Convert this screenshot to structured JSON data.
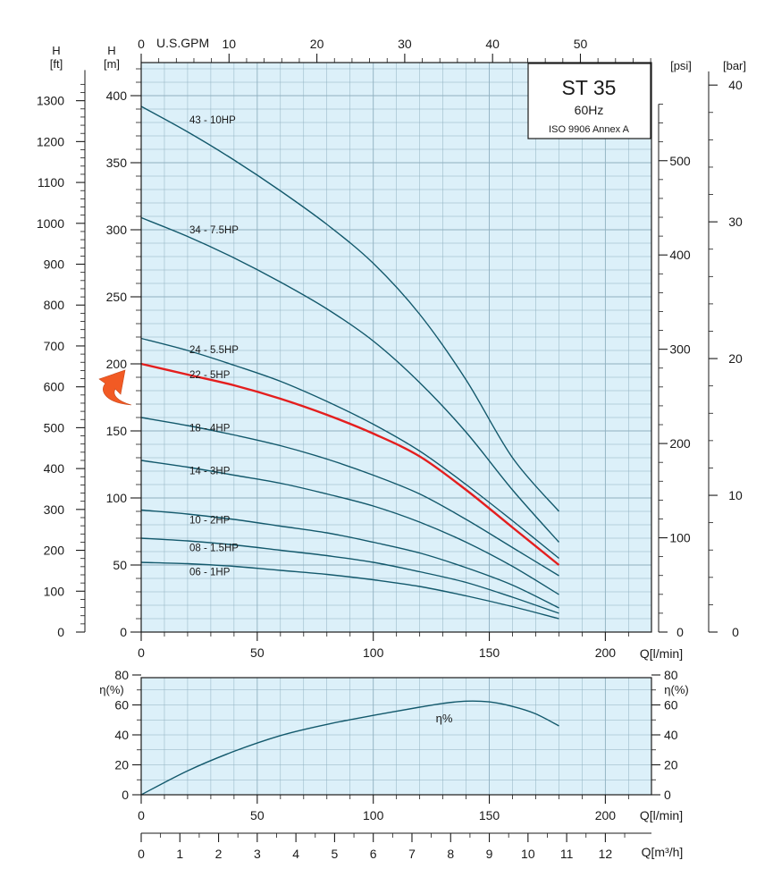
{
  "title_box": {
    "title": "ST 35",
    "frequency": "60Hz",
    "standard": "ISO 9906 Annex A"
  },
  "axes": {
    "q_lmin_label": "Q[l/min]",
    "q_m3h_label": "Q[m³/h]",
    "gpm_label": "U.S.GPM",
    "h_m_label": [
      "H",
      "[m]"
    ],
    "h_ft_label": [
      "H",
      "[ft]"
    ],
    "psi_label": "[psi]",
    "bar_label": "[bar]",
    "eff_label": "η(%)",
    "q_lmin_ticks": [
      "0",
      "50",
      "100",
      "150",
      "200"
    ],
    "q_m3h_ticks": [
      "0",
      "1",
      "2",
      "3",
      "4",
      "5",
      "6",
      "7",
      "8",
      "9",
      "10",
      "11",
      "12"
    ],
    "gpm_ticks": [
      "0",
      "10",
      "20",
      "30",
      "40",
      "50"
    ],
    "h_m_ticks": [
      "0",
      "50",
      "100",
      "150",
      "200",
      "250",
      "300",
      "350",
      "400"
    ],
    "h_ft_ticks": [
      "0",
      "100",
      "200",
      "300",
      "400",
      "500",
      "600",
      "700",
      "800",
      "900",
      "1000",
      "1100",
      "1200",
      "1300"
    ],
    "psi_ticks": [
      "0",
      "100",
      "200",
      "300",
      "400",
      "500"
    ],
    "bar_ticks": [
      "0",
      "10",
      "20",
      "30",
      "40"
    ],
    "eff_ticks": [
      "0",
      "20",
      "40",
      "60",
      "80"
    ]
  },
  "colors": {
    "curve": "#13596c",
    "highlight": "#e41e1e",
    "plot_background": "#dcf0f9",
    "grid": "#8fb0c0",
    "arrow": "#f25a24"
  },
  "chart_data": [
    {
      "type": "line",
      "name": "head-curves",
      "xlabel": "Q[l/min]",
      "ylabel": "H [m]",
      "xlim": [
        0,
        220
      ],
      "ylim": [
        0,
        420
      ],
      "x": [
        0,
        20,
        40,
        60,
        80,
        100,
        120,
        140,
        160,
        180
      ],
      "series": [
        {
          "name": "43 - 10HP",
          "values": [
            392,
            373,
            352,
            329,
            304,
            275,
            237,
            188,
            130,
            90
          ]
        },
        {
          "name": "34 - 7.5HP",
          "values": [
            309,
            295,
            279,
            261,
            241,
            217,
            186,
            149,
            106,
            67
          ]
        },
        {
          "name": "24 - 5.5HP",
          "values": [
            219,
            210,
            199,
            187,
            172,
            155,
            135,
            110,
            83,
            55
          ]
        },
        {
          "name": "22 - 5HP",
          "values": [
            200,
            192,
            184,
            174,
            162,
            148,
            131,
            106,
            78,
            50
          ],
          "highlight": true
        },
        {
          "name": "18 - 4HP",
          "values": [
            160,
            154,
            147,
            139,
            129,
            117,
            103,
            84,
            63,
            42
          ]
        },
        {
          "name": "14 - 3HP",
          "values": [
            128,
            123,
            117,
            111,
            103,
            94,
            82,
            67,
            49,
            28
          ]
        },
        {
          "name": "10 - 2HP",
          "values": [
            91,
            88,
            84,
            79,
            74,
            67,
            59,
            48,
            35,
            18
          ]
        },
        {
          "name": "08 - 1.5HP",
          "values": [
            70,
            68,
            65,
            61,
            57,
            52,
            45,
            37,
            26,
            14
          ]
        },
        {
          "name": "06 - 1HP",
          "values": [
            52,
            51,
            49,
            46,
            43,
            39,
            34,
            27,
            19,
            10
          ]
        }
      ]
    },
    {
      "type": "line",
      "name": "efficiency-curve",
      "xlabel": "Q[l/min]",
      "ylabel": "η(%)",
      "xlim": [
        0,
        220
      ],
      "ylim": [
        0,
        80
      ],
      "x": [
        0,
        20,
        40,
        60,
        80,
        100,
        120,
        130,
        140,
        150,
        160,
        170,
        180
      ],
      "series": [
        {
          "name": "η%",
          "values": [
            0,
            16,
            29,
            39.5,
            47,
            53,
            58.5,
            61,
            62.5,
            62,
            59,
            54,
            46
          ]
        }
      ]
    }
  ]
}
